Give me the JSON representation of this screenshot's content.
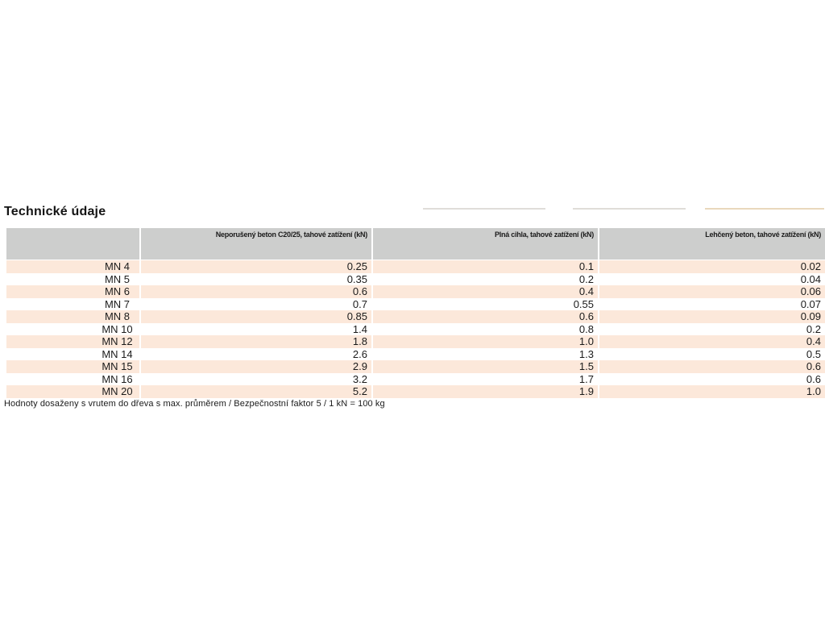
{
  "title": "Technické údaje",
  "footnote": "Hodnoty dosaženy s vrutem do dřeva s max. průměrem / Bezpečnostní faktor 5 / 1 kN = 100 kg",
  "colors": {
    "header_bg": "#cdcecd",
    "row_alt_bg": "#fce8da",
    "row_bg": "#ffffff",
    "text": "#1b1b1b",
    "artifact_gray": "#d6d2cc",
    "artifact_tan": "#e2cba6"
  },
  "table": {
    "columns": [
      "",
      "Neporušený beton C20/25, tahové zatížení (kN)",
      "Plná cihla, tahové zatížení (kN)",
      "Lehčený beton, tahové zatížení (kN)"
    ],
    "rows": [
      {
        "label": "MN 4",
        "values": [
          "0.25",
          "0.1",
          "0.02"
        ]
      },
      {
        "label": "MN 5",
        "values": [
          "0.35",
          "0.2",
          "0.04"
        ]
      },
      {
        "label": "MN 6",
        "values": [
          "0.6",
          "0.4",
          "0.06"
        ]
      },
      {
        "label": "MN 7",
        "values": [
          "0.7",
          "0.55",
          "0.07"
        ]
      },
      {
        "label": "MN 8",
        "values": [
          "0.85",
          "0.6",
          "0.09"
        ]
      },
      {
        "label": "MN 10",
        "values": [
          "1.4",
          "0.8",
          "0.2"
        ]
      },
      {
        "label": "MN 12",
        "values": [
          "1.8",
          "1.0",
          "0.4"
        ]
      },
      {
        "label": "MN 14",
        "values": [
          "2.6",
          "1.3",
          "0.5"
        ]
      },
      {
        "label": "MN 15",
        "values": [
          "2.9",
          "1.5",
          "0.6"
        ]
      },
      {
        "label": "MN 16",
        "values": [
          "3.2",
          "1.7",
          "0.6"
        ]
      },
      {
        "label": "MN 20",
        "values": [
          "5.2",
          "1.9",
          "1.0"
        ]
      }
    ]
  }
}
